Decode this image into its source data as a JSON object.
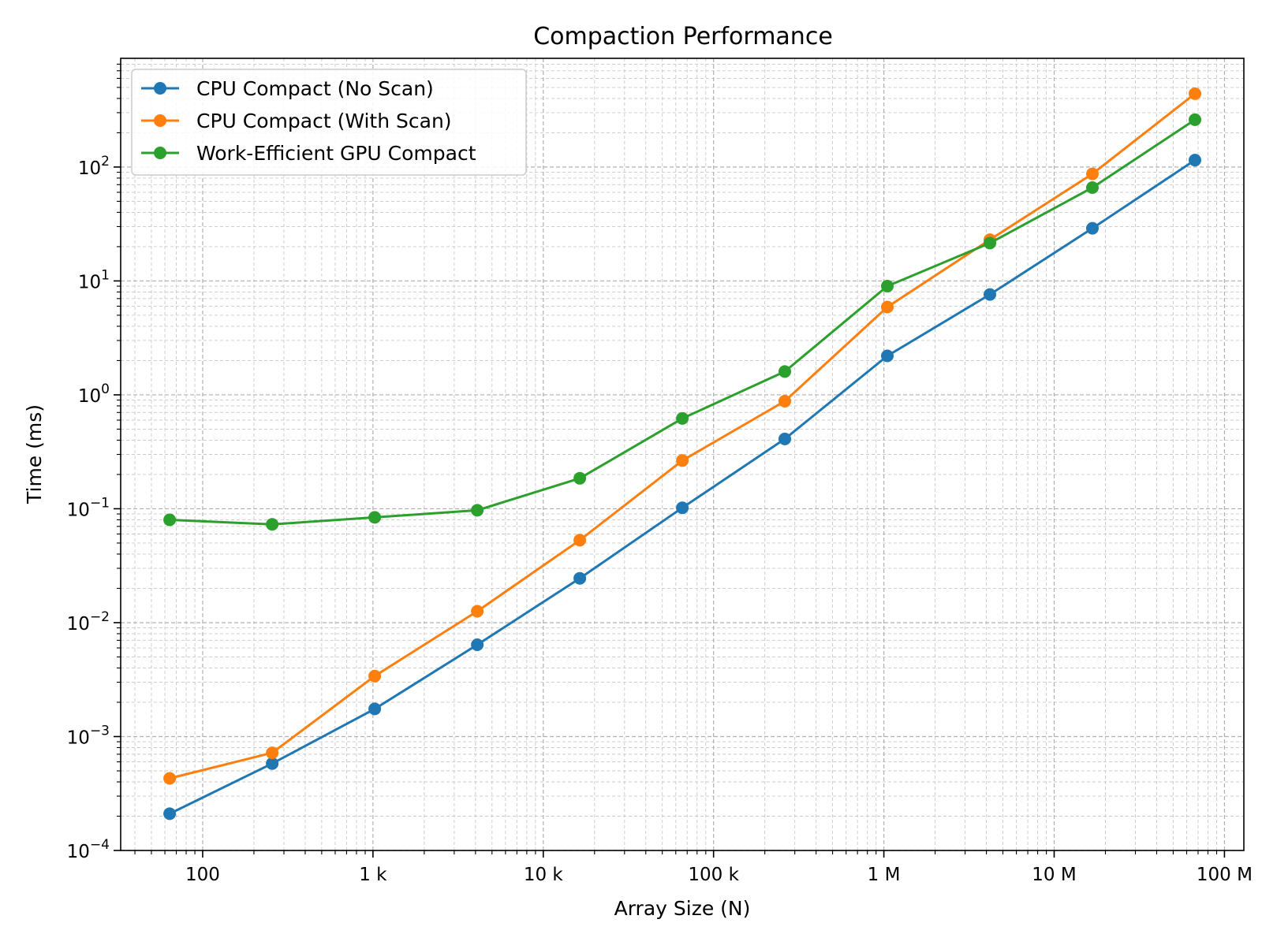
{
  "chart_data": {
    "type": "line",
    "title": "Compaction Performance",
    "xlabel": "Array Size (N)",
    "ylabel": "Time (ms)",
    "xscale": "log",
    "yscale": "log",
    "xlim": [
      33,
      130000000
    ],
    "ylim": [
      0.0001,
      900
    ],
    "grid": true,
    "legend_position": "top-left",
    "x_ticks": [
      {
        "value": 100,
        "label": "100"
      },
      {
        "value": 1000,
        "label": "1 k"
      },
      {
        "value": 10000,
        "label": "10 k"
      },
      {
        "value": 100000,
        "label": "100 k"
      },
      {
        "value": 1000000,
        "label": "1 M"
      },
      {
        "value": 10000000,
        "label": "10 M"
      },
      {
        "value": 100000000,
        "label": "100 M"
      }
    ],
    "y_ticks": [
      {
        "value": 0.0001,
        "base": "10",
        "exp": "−4"
      },
      {
        "value": 0.001,
        "base": "10",
        "exp": "−3"
      },
      {
        "value": 0.01,
        "base": "10",
        "exp": "−2"
      },
      {
        "value": 0.1,
        "base": "10",
        "exp": "−1"
      },
      {
        "value": 1,
        "base": "10",
        "exp": "0"
      },
      {
        "value": 10,
        "base": "10",
        "exp": "1"
      },
      {
        "value": 100,
        "base": "10",
        "exp": "2"
      }
    ],
    "x": [
      64,
      256,
      1024,
      4096,
      16384,
      65536,
      262144,
      1048576,
      4194304,
      16777216,
      67108864
    ],
    "series": [
      {
        "name": "CPU Compact (No Scan)",
        "color": "#1f77b4",
        "values": [
          0.00021,
          0.00058,
          0.00175,
          0.0064,
          0.0245,
          0.102,
          0.41,
          2.2,
          7.6,
          29,
          115
        ]
      },
      {
        "name": "CPU Compact (With Scan)",
        "color": "#ff7f0e",
        "values": [
          0.00043,
          0.00072,
          0.0034,
          0.0126,
          0.053,
          0.265,
          0.88,
          5.9,
          23,
          87,
          440
        ]
      },
      {
        "name": "Work-Efficient GPU Compact",
        "color": "#2ca02c",
        "values": [
          0.08,
          0.073,
          0.084,
          0.097,
          0.185,
          0.62,
          1.6,
          9.0,
          21.5,
          66,
          260
        ]
      }
    ]
  }
}
